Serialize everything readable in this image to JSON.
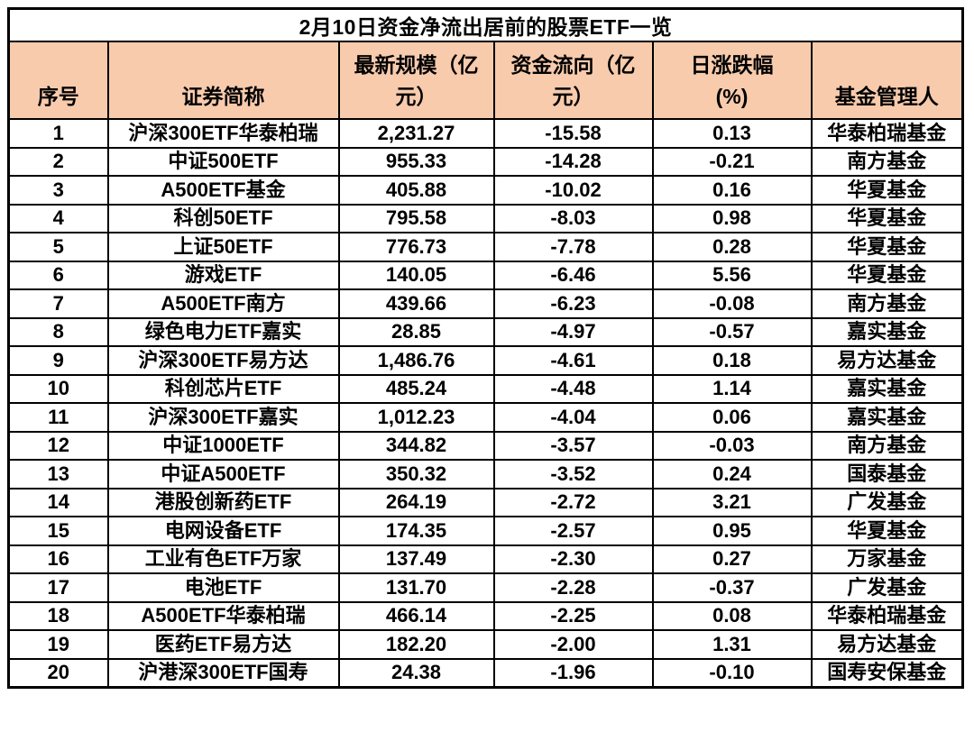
{
  "title": "2月10日资金净流出居前的股票ETF一览",
  "colors": {
    "header_bg": "#F8CBAD",
    "title_bg": "#FFFFFF",
    "row_bg": "#FFFFFF",
    "border": "#000000",
    "text": "#000000"
  },
  "chart_data": {
    "type": "table",
    "title": "2月10日资金净流出居前的股票ETF一览",
    "columns": [
      "序号",
      "证券简称",
      "最新规模（亿元）",
      "资金流向（亿元）",
      "日涨跌幅(%)",
      "基金管理人"
    ],
    "header_display": [
      "序号",
      "证券简称",
      "最新规模（亿\n元）",
      "资金流向（亿\n元）",
      "日涨跌幅\n(%)",
      "基金管理人"
    ],
    "rows": [
      [
        "1",
        "沪深300ETF华泰柏瑞",
        "2,231.27",
        "-15.58",
        "0.13",
        "华泰柏瑞基金"
      ],
      [
        "2",
        "中证500ETF",
        "955.33",
        "-14.28",
        "-0.21",
        "南方基金"
      ],
      [
        "3",
        "A500ETF基金",
        "405.88",
        "-10.02",
        "0.16",
        "华夏基金"
      ],
      [
        "4",
        "科创50ETF",
        "795.58",
        "-8.03",
        "0.98",
        "华夏基金"
      ],
      [
        "5",
        "上证50ETF",
        "776.73",
        "-7.78",
        "0.28",
        "华夏基金"
      ],
      [
        "6",
        "游戏ETF",
        "140.05",
        "-6.46",
        "5.56",
        "华夏基金"
      ],
      [
        "7",
        "A500ETF南方",
        "439.66",
        "-6.23",
        "-0.08",
        "南方基金"
      ],
      [
        "8",
        "绿色电力ETF嘉实",
        "28.85",
        "-4.97",
        "-0.57",
        "嘉实基金"
      ],
      [
        "9",
        "沪深300ETF易方达",
        "1,486.76",
        "-4.61",
        "0.18",
        "易方达基金"
      ],
      [
        "10",
        "科创芯片ETF",
        "485.24",
        "-4.48",
        "1.14",
        "嘉实基金"
      ],
      [
        "11",
        "沪深300ETF嘉实",
        "1,012.23",
        "-4.04",
        "0.06",
        "嘉实基金"
      ],
      [
        "12",
        "中证1000ETF",
        "344.82",
        "-3.57",
        "-0.03",
        "南方基金"
      ],
      [
        "13",
        "中证A500ETF",
        "350.32",
        "-3.52",
        "0.24",
        "国泰基金"
      ],
      [
        "14",
        "港股创新药ETF",
        "264.19",
        "-2.72",
        "3.21",
        "广发基金"
      ],
      [
        "15",
        "电网设备ETF",
        "174.35",
        "-2.57",
        "0.95",
        "华夏基金"
      ],
      [
        "16",
        "工业有色ETF万家",
        "137.49",
        "-2.30",
        "0.27",
        "万家基金"
      ],
      [
        "17",
        "电池ETF",
        "131.70",
        "-2.28",
        "-0.37",
        "广发基金"
      ],
      [
        "18",
        "A500ETF华泰柏瑞",
        "466.14",
        "-2.25",
        "0.08",
        "华泰柏瑞基金"
      ],
      [
        "19",
        "医药ETF易方达",
        "182.20",
        "-2.00",
        "1.31",
        "易方达基金"
      ],
      [
        "20",
        "沪港深300ETF国寿",
        "24.38",
        "-1.96",
        "-0.10",
        "国寿安保基金"
      ]
    ]
  }
}
